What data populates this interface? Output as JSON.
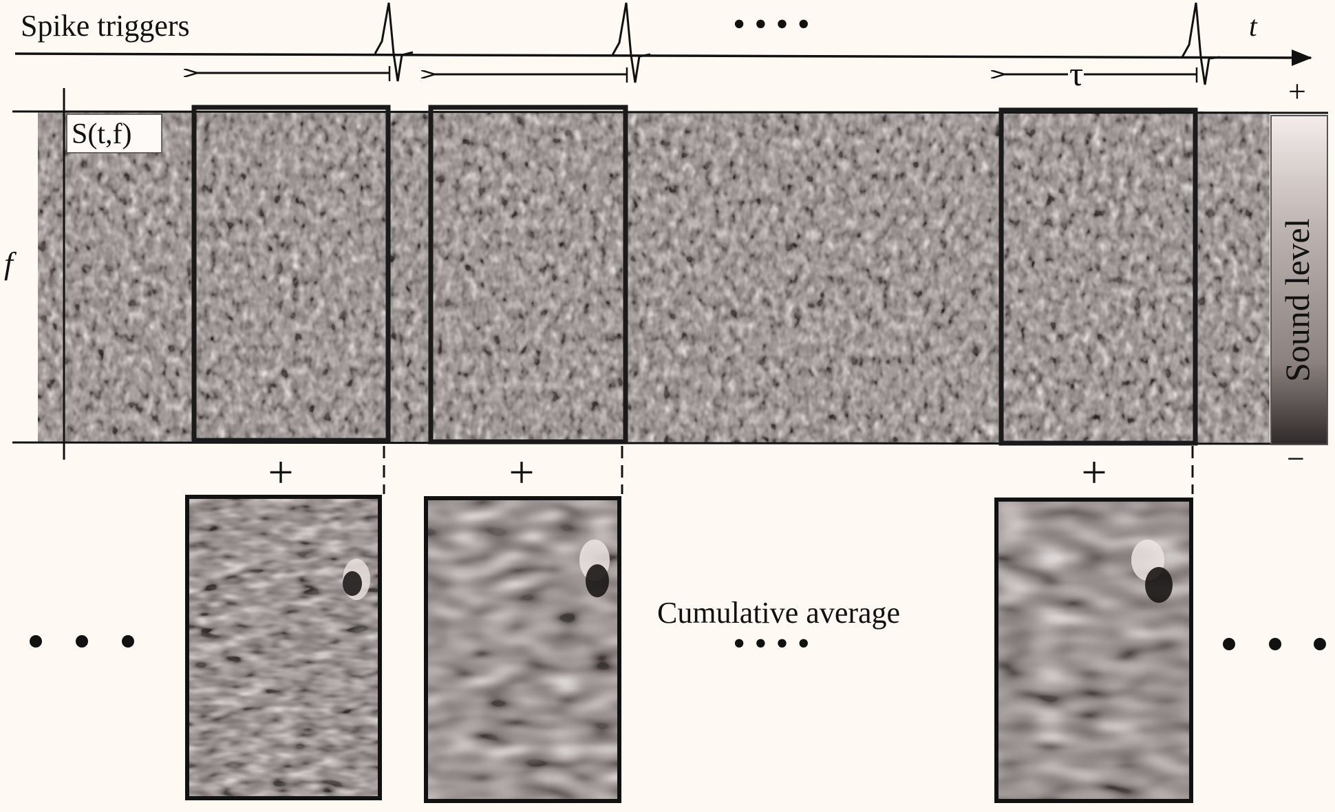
{
  "labels": {
    "spike_triggers": "Spike triggers",
    "time_axis": "t",
    "freq_axis": "f",
    "stimulus": "S(t,f)",
    "lag": "τ",
    "colorbar_title": "Sound level",
    "colorbar_plus": "+",
    "colorbar_minus": "−",
    "plus_sign": "+",
    "cumulative_average": "Cumulative average"
  },
  "ellipsis": "•  •  •  •",
  "colors": {
    "background": "#fff9f4",
    "ink": "#111111",
    "noise_light": "#d8cfcc",
    "noise_dark": "#3a3534"
  }
}
